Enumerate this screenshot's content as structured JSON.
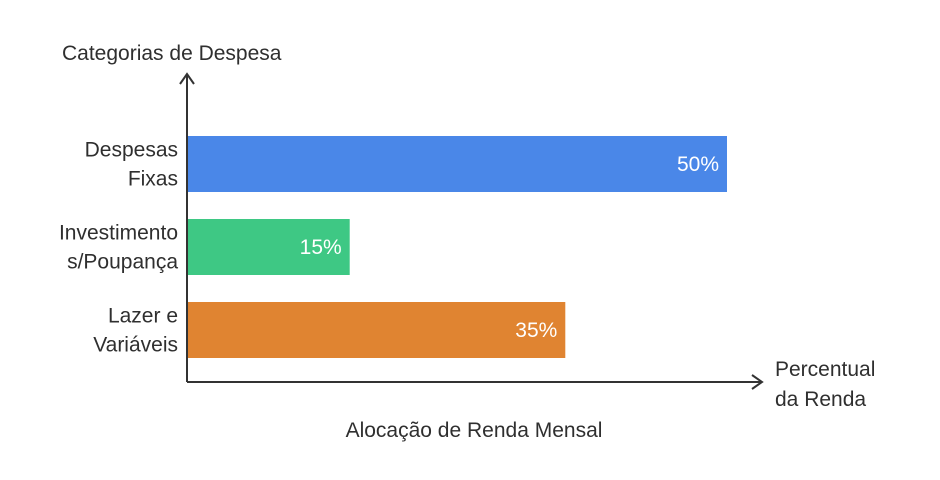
{
  "chart_data": {
    "type": "bar",
    "orientation": "horizontal",
    "title": "Alocação de Renda Mensal",
    "xlabel": [
      "Percentual",
      "da Renda"
    ],
    "ylabel": "Categorias de Despesa",
    "categories": [
      [
        "Despesas",
        "Fixas"
      ],
      [
        "Investimento",
        "s/Poupança"
      ],
      [
        "Lazer e",
        "Variáveis"
      ]
    ],
    "values": [
      50,
      15,
      35
    ],
    "value_labels": [
      "50%",
      "15%",
      "35%"
    ],
    "colors": [
      "#4a87e8",
      "#3ec884",
      "#e08431"
    ],
    "xlim": [
      0,
      70
    ],
    "grid": false,
    "legend": "none"
  }
}
